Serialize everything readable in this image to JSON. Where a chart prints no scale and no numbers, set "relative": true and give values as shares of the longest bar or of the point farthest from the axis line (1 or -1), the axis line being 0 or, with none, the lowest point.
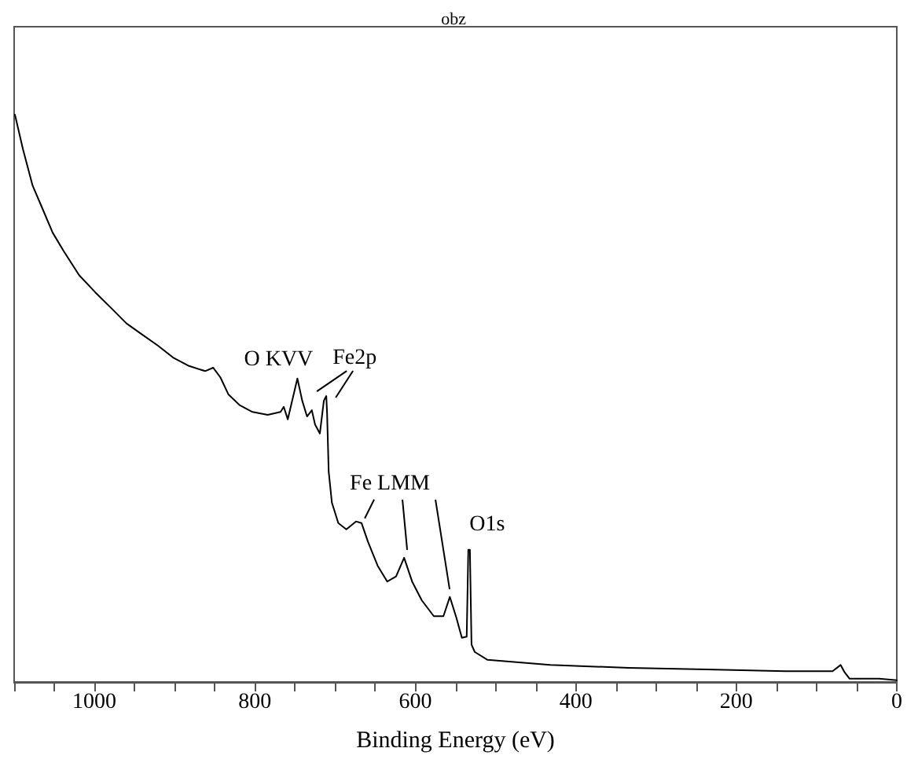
{
  "chart_data": {
    "type": "line",
    "title": "obz",
    "xlabel": "Binding Energy (eV)",
    "relative": true,
    "grid": false,
    "marker": "none",
    "line_style": "solid",
    "xlim": [
      1100,
      0
    ],
    "xticks": [
      {
        "value": 1100,
        "label": null
      },
      {
        "value": 1050,
        "label": null
      },
      1000,
      {
        "value": 950,
        "label": null
      },
      {
        "value": 900,
        "label": null
      },
      {
        "value": 850,
        "label": null
      },
      800,
      {
        "value": 750,
        "label": null
      },
      {
        "value": 700,
        "label": null
      },
      {
        "value": 650,
        "label": null
      },
      600,
      {
        "value": 550,
        "label": null
      },
      {
        "value": 500,
        "label": null
      },
      {
        "value": 450,
        "label": null
      },
      400,
      {
        "value": 350,
        "label": null
      },
      {
        "value": 300,
        "label": null
      },
      {
        "value": 250,
        "label": null
      },
      200,
      {
        "value": 150,
        "label": null
      },
      {
        "value": 100,
        "label": null
      },
      {
        "value": 50,
        "label": null
      },
      0
    ],
    "x": [
      1099,
      1089,
      1077,
      1067,
      1052,
      1038,
      1019,
      999,
      979,
      960,
      940,
      921,
      901,
      882,
      862,
      852,
      843,
      833,
      819,
      803,
      784,
      768,
      764,
      759,
      753,
      747,
      741,
      735,
      729,
      725,
      719,
      714,
      711,
      710,
      708,
      704,
      696,
      686,
      674,
      667,
      659,
      647,
      635,
      624,
      614,
      604,
      592,
      577,
      565,
      557,
      549,
      542,
      536,
      534,
      532,
      530,
      526,
      510,
      432,
      334,
      237,
      139,
      80,
      70,
      65,
      59,
      22,
      0
    ],
    "series": [
      {
        "color": "#000000",
        "values": [
          1.0,
          0.939,
          0.875,
          0.842,
          0.792,
          0.759,
          0.717,
          0.687,
          0.659,
          0.632,
          0.612,
          0.593,
          0.571,
          0.557,
          0.548,
          0.554,
          0.537,
          0.507,
          0.488,
          0.476,
          0.471,
          0.476,
          0.485,
          0.463,
          0.499,
          0.535,
          0.496,
          0.468,
          0.479,
          0.454,
          0.438,
          0.496,
          0.504,
          0.474,
          0.371,
          0.316,
          0.28,
          0.269,
          0.283,
          0.28,
          0.247,
          0.205,
          0.177,
          0.186,
          0.219,
          0.177,
          0.144,
          0.116,
          0.116,
          0.15,
          0.114,
          0.078,
          0.08,
          0.233,
          0.233,
          0.066,
          0.053,
          0.039,
          0.03,
          0.025,
          0.022,
          0.019,
          0.019,
          0.03,
          0.017,
          0.006,
          0.006,
          0.003
        ]
      }
    ],
    "annotations": [
      {
        "text": "O KVV",
        "x": 747,
        "y": 0.535
      },
      {
        "text": "Fe2p",
        "x": 711,
        "y": 0.504
      },
      {
        "text": "Fe LMM",
        "x": 667,
        "y": 0.28
      },
      {
        "text": "O1s",
        "x": 532,
        "y": 0.233
      }
    ]
  }
}
